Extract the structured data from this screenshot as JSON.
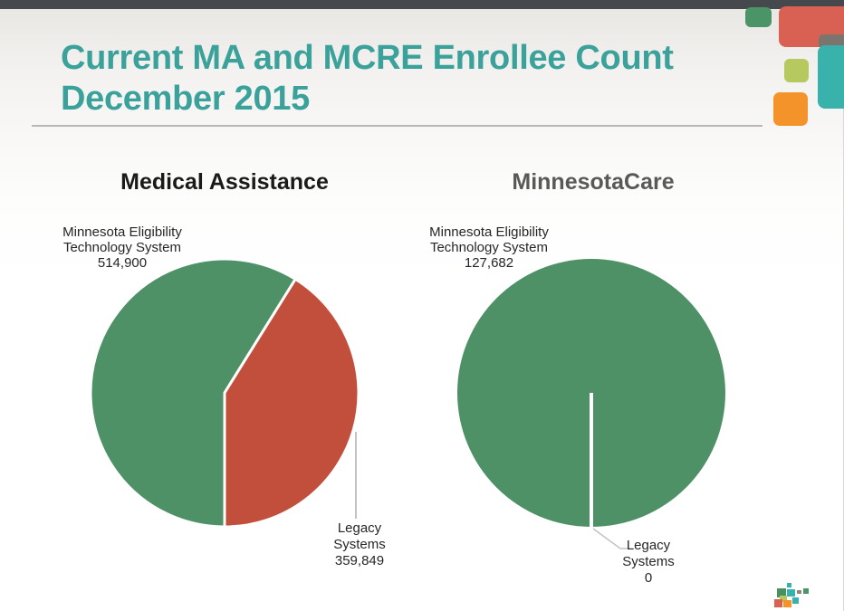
{
  "slide": {
    "title_line1": "Current MA and MCRE Enrollee Count",
    "title_line2": "December 2015"
  },
  "chart_data": [
    {
      "type": "pie",
      "title": "Medical Assistance",
      "categories": [
        "Minnesota Eligibility Technology System",
        "Legacy Systems"
      ],
      "values": [
        514900,
        359849
      ],
      "colors": [
        "#4e9166",
        "#c24e3c"
      ],
      "rotation_deg": 180,
      "legend_position": "none",
      "mets_label": {
        "l1": "Minnesota Eligibility",
        "l2": "Technology System",
        "l3": "514,900"
      },
      "legacy_label": {
        "l1": "Legacy",
        "l2": "Systems",
        "l3": "359,849"
      }
    },
    {
      "type": "pie",
      "title": "MinnesotaCare",
      "categories": [
        "Minnesota Eligibility Technology System",
        "Legacy Systems"
      ],
      "values": [
        127682,
        0
      ],
      "colors": [
        "#4e9166",
        "#c24e3c"
      ],
      "rotation_deg": 180,
      "legend_position": "none",
      "mets_label": {
        "l1": "Minnesota Eligibility",
        "l2": "Technology System",
        "l3": "127,682"
      },
      "legacy_label": {
        "l1": "Legacy",
        "l2": "Systems",
        "l3": "0"
      }
    }
  ],
  "theme": {
    "title_teal": "#3aa29b",
    "chart_title_left_color": "#1a1a1a",
    "chart_title_right_color": "#595959",
    "pie_green": "#4e9166",
    "pie_red": "#c24e3c",
    "decoration": {
      "top_bar": "#45494d",
      "green_square": "#4a9468",
      "red_rect": "#d96153",
      "gray_tab": "#7b756d",
      "teal_rect": "#39b2ac",
      "olive_square": "#b5c95e",
      "orange_square": "#f3932a"
    }
  }
}
